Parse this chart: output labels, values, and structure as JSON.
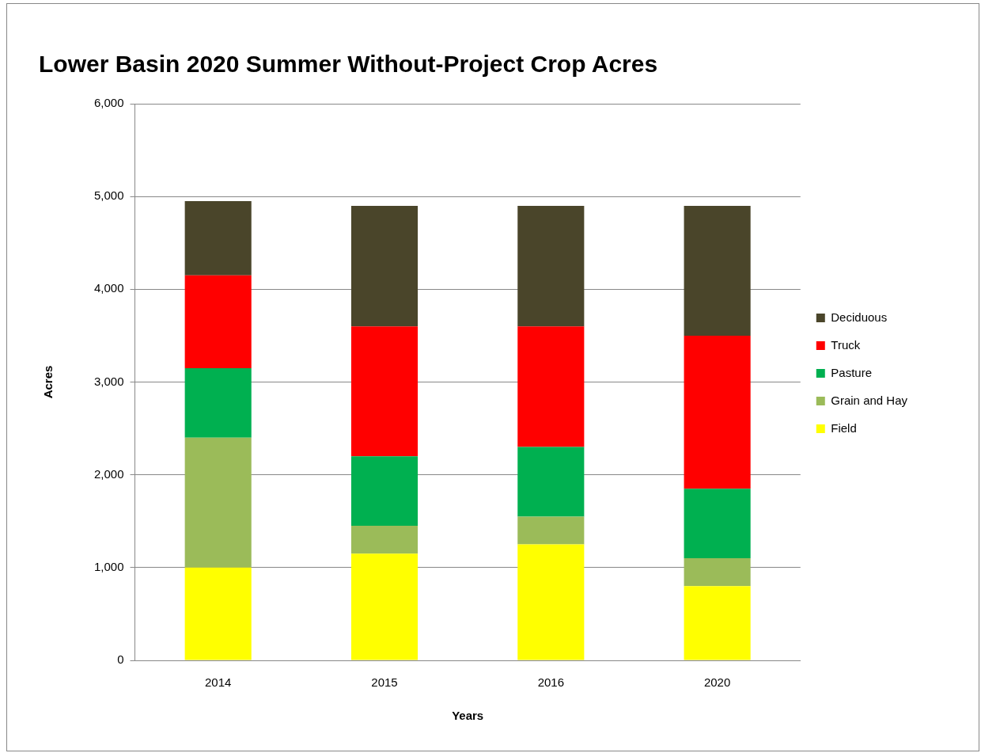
{
  "chart_data": {
    "type": "bar",
    "title": "Lower Basin 2020 Summer Without-Project Crop Acres",
    "xlabel": "Years",
    "ylabel": "Acres",
    "categories": [
      "2014",
      "2015",
      "2016",
      "2020"
    ],
    "stacked": true,
    "series": [
      {
        "name": "Field",
        "color": "#ffff00",
        "values": [
          1000,
          1150,
          1250,
          800
        ]
      },
      {
        "name": "Grain and Hay",
        "color": "#9bbb59",
        "values": [
          1400,
          300,
          300,
          300
        ]
      },
      {
        "name": "Pasture",
        "color": "#00b050",
        "values": [
          750,
          750,
          750,
          750
        ]
      },
      {
        "name": "Truck",
        "color": "#ff0000",
        "values": [
          1000,
          1400,
          1300,
          1650
        ]
      },
      {
        "name": "Deciduous",
        "color": "#4a452a",
        "values": [
          800,
          1300,
          1300,
          1400
        ]
      }
    ],
    "ylim": [
      0,
      6000
    ],
    "yticks": [
      {
        "value": 0,
        "label": "0"
      },
      {
        "value": 1000,
        "label": "1,000"
      },
      {
        "value": 2000,
        "label": "2,000"
      },
      {
        "value": 3000,
        "label": "3,000"
      },
      {
        "value": 4000,
        "label": "4,000"
      },
      {
        "value": 5000,
        "label": "5,000"
      },
      {
        "value": 6000,
        "label": "6,000"
      }
    ],
    "grid": "y",
    "legend": "right"
  }
}
